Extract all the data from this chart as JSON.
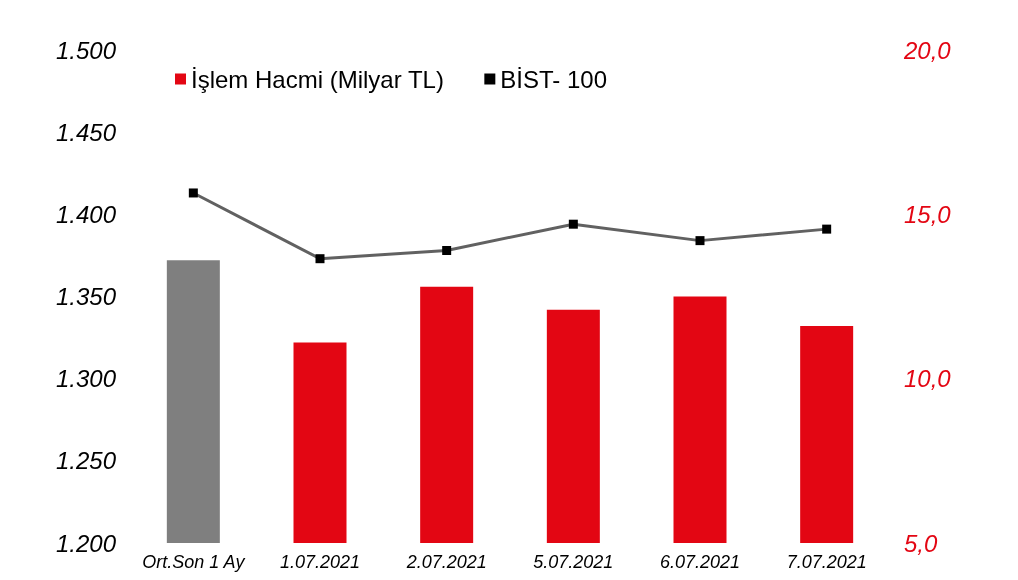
{
  "chart_data": {
    "type": "bar",
    "categories": [
      "Ort.Son 1 Ay",
      "1.07.2021",
      "2.07.2021",
      "5.07.2021",
      "6.07.2021",
      "7.07.2021"
    ],
    "series": [
      {
        "name": "İşlem Hacmi (Milyar TL)",
        "axis": "y2",
        "color": "#e30613",
        "colors": [
          "#7f7f7f",
          "#e30613",
          "#e30613",
          "#e30613",
          "#e30613",
          "#e30613"
        ],
        "values": [
          13.6,
          11.1,
          12.8,
          12.1,
          12.5,
          11.6
        ]
      },
      {
        "name": "BİST- 100",
        "type": "line",
        "color": "#000000",
        "marker": "square",
        "values": [
          1413,
          1373,
          1378,
          1394,
          1384,
          1391
        ]
      }
    ],
    "ylim": [
      1200,
      1500
    ],
    "yticks": [
      {
        "value": 1200,
        "label": "1.200"
      },
      {
        "value": 1250,
        "label": "1.250"
      },
      {
        "value": 1300,
        "label": "1.300"
      },
      {
        "value": 1350,
        "label": "1.350"
      },
      {
        "value": 1400,
        "label": "1.400"
      },
      {
        "value": 1450,
        "label": "1.450"
      },
      {
        "value": 1500,
        "label": "1.500"
      }
    ],
    "y2lim": [
      5,
      20
    ],
    "y2ticks": [
      {
        "value": 5,
        "label": "5,0"
      },
      {
        "value": 10,
        "label": "10,0"
      },
      {
        "value": 15,
        "label": "15,0"
      },
      {
        "value": 20,
        "label": "20,0"
      }
    ],
    "grid": false,
    "legend": "top left"
  }
}
